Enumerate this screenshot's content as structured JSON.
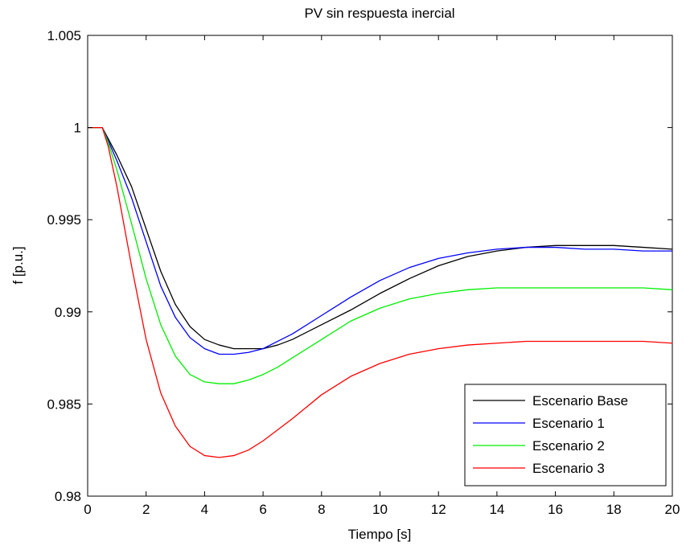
{
  "chart_data": {
    "type": "line",
    "title": "PV sin respuesta inercial",
    "xlabel": "Tiempo [s]",
    "ylabel": "f [p.u.]",
    "xlim": [
      0,
      20
    ],
    "ylim": [
      0.98,
      1.005
    ],
    "xticks": [
      0,
      2,
      4,
      6,
      8,
      10,
      12,
      14,
      16,
      18,
      20
    ],
    "xtick_labels": [
      "0",
      "2",
      "4",
      "6",
      "8",
      "10",
      "12",
      "14",
      "16",
      "18",
      "20"
    ],
    "yticks": [
      0.98,
      0.985,
      0.99,
      0.995,
      1.0,
      1.005
    ],
    "ytick_labels": [
      "0.98",
      "0.985",
      "0.99",
      "0.995",
      "1",
      "1.005"
    ],
    "grid": false,
    "legend_position": "bottom-right",
    "series": [
      {
        "name": "Escenario Base",
        "color": "#000000",
        "x": [
          0,
          0.5,
          0.7,
          1,
          1.5,
          2,
          2.5,
          3,
          3.5,
          4,
          4.5,
          5,
          5.5,
          6,
          6.5,
          7,
          8,
          9,
          10,
          11,
          12,
          13,
          14,
          15,
          16,
          17,
          18,
          19,
          20
        ],
        "y": [
          1.0,
          1.0,
          0.9994,
          0.9985,
          0.9968,
          0.9945,
          0.9922,
          0.9904,
          0.9892,
          0.9885,
          0.9882,
          0.988,
          0.988,
          0.988,
          0.9882,
          0.9885,
          0.9893,
          0.9901,
          0.991,
          0.9918,
          0.9925,
          0.993,
          0.9933,
          0.9935,
          0.9936,
          0.9936,
          0.9936,
          0.9935,
          0.9934
        ]
      },
      {
        "name": "Escenario 1",
        "color": "#0000ff",
        "x": [
          0,
          0.5,
          0.7,
          1,
          1.5,
          2,
          2.5,
          3,
          3.5,
          4,
          4.5,
          5,
          5.5,
          6,
          6.5,
          7,
          8,
          9,
          10,
          11,
          12,
          13,
          14,
          15,
          16,
          17,
          18,
          19,
          20
        ],
        "y": [
          1.0,
          1.0,
          0.9993,
          0.9982,
          0.9962,
          0.9938,
          0.9914,
          0.9897,
          0.9886,
          0.988,
          0.9877,
          0.9877,
          0.9878,
          0.988,
          0.9884,
          0.9888,
          0.9898,
          0.9908,
          0.9917,
          0.9924,
          0.9929,
          0.9932,
          0.9934,
          0.9935,
          0.9935,
          0.9934,
          0.9934,
          0.9933,
          0.9933
        ]
      },
      {
        "name": "Escenario 2",
        "color": "#00ee00",
        "x": [
          0,
          0.5,
          0.7,
          1,
          1.5,
          2,
          2.5,
          3,
          3.5,
          4,
          4.5,
          5,
          5.5,
          6,
          6.5,
          7,
          8,
          9,
          10,
          11,
          12,
          13,
          14,
          15,
          16,
          17,
          18,
          19,
          20
        ],
        "y": [
          1.0,
          1.0,
          0.9992,
          0.9977,
          0.9948,
          0.9918,
          0.9893,
          0.9876,
          0.9866,
          0.9862,
          0.9861,
          0.9861,
          0.9863,
          0.9866,
          0.987,
          0.9875,
          0.9885,
          0.9895,
          0.9902,
          0.9907,
          0.991,
          0.9912,
          0.9913,
          0.9913,
          0.9913,
          0.9913,
          0.9913,
          0.9913,
          0.9912
        ]
      },
      {
        "name": "Escenario 3",
        "color": "#ff0000",
        "x": [
          0,
          0.5,
          0.7,
          1,
          1.5,
          2,
          2.5,
          3,
          3.5,
          4,
          4.5,
          5,
          5.5,
          6,
          6.5,
          7,
          8,
          9,
          10,
          11,
          12,
          13,
          14,
          15,
          16,
          17,
          18,
          19,
          20
        ],
        "y": [
          1.0,
          1.0,
          0.999,
          0.9968,
          0.9925,
          0.9885,
          0.9856,
          0.9838,
          0.9827,
          0.9822,
          0.9821,
          0.9822,
          0.9825,
          0.983,
          0.9836,
          0.9842,
          0.9855,
          0.9865,
          0.9872,
          0.9877,
          0.988,
          0.9882,
          0.9883,
          0.9884,
          0.9884,
          0.9884,
          0.9884,
          0.9884,
          0.9883
        ]
      }
    ]
  }
}
